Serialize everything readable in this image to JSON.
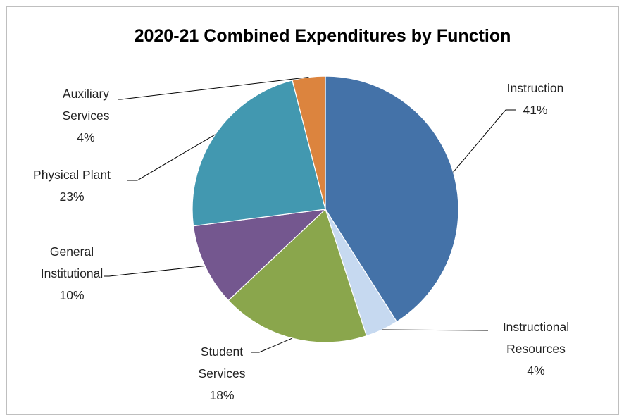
{
  "chart_data": {
    "type": "pie",
    "title": "2020-21 Combined Expenditures by Function",
    "start_angle_deg": 0,
    "direction": "clockwise",
    "slices": [
      {
        "name": "Instruction",
        "name_lines": [
          "Instruction"
        ],
        "value": 41,
        "label": "41%",
        "color": "#4472a8"
      },
      {
        "name": "Instructional Resources",
        "name_lines": [
          "Instructional",
          "Resources"
        ],
        "value": 4,
        "label": "4%",
        "color": "#c6d9f0"
      },
      {
        "name": "Student Services",
        "name_lines": [
          "Student",
          "Services"
        ],
        "value": 18,
        "label": "18%",
        "color": "#8aa64c"
      },
      {
        "name": "General Institutional",
        "name_lines": [
          "General",
          "Institutional"
        ],
        "value": 10,
        "label": "10%",
        "color": "#74578f"
      },
      {
        "name": "Physical Plant",
        "name_lines": [
          "Physical Plant"
        ],
        "value": 23,
        "label": "23%",
        "color": "#4298b0"
      },
      {
        "name": "Auxiliary Services",
        "name_lines": [
          "Auxiliary",
          "Services"
        ],
        "value": 4,
        "label": "4%",
        "color": "#dc843e"
      }
    ],
    "legend": "none",
    "data_labels": "outside with leader lines"
  }
}
